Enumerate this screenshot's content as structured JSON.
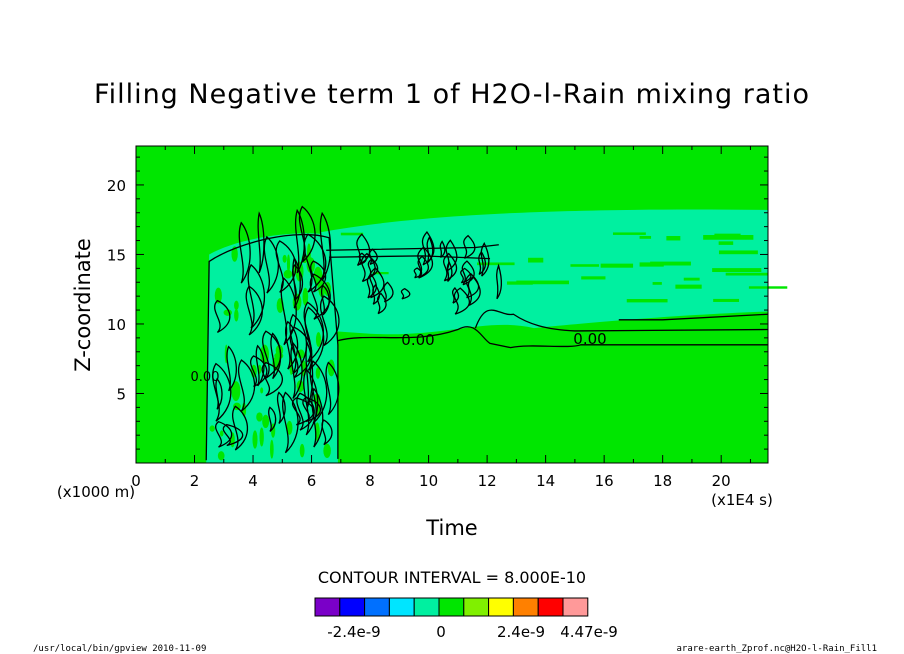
{
  "chart_data": {
    "type": "heatmap",
    "title": "Filling Negative term 1 of H2O-l-Rain mixing ratio",
    "xlabel": "Time",
    "ylabel": "Z-coordinate",
    "x_unit_label": "(x1E4 s)",
    "y_unit_label": "(x1000 m)",
    "xlim": [
      0,
      21.6
    ],
    "ylim": [
      0,
      22.8
    ],
    "x_ticks": [
      "0",
      "2",
      "4",
      "6",
      "8",
      "10",
      "12",
      "14",
      "16",
      "18",
      "20"
    ],
    "y_ticks": [
      "5",
      "10",
      "15",
      "20"
    ],
    "contour_interval_text": "CONTOUR INTERVAL = 8.000E-10",
    "contour_labels": [
      "0.00",
      "0.00",
      "0.00"
    ],
    "colorbar": {
      "colors": [
        "#7a00c8",
        "#0000ff",
        "#0070ff",
        "#00e5ff",
        "#00f0a0",
        "#00e600",
        "#80f000",
        "#ffff00",
        "#ff8000",
        "#ff0000",
        "#ff9999"
      ],
      "labels": [
        "-2.4e-9",
        "0",
        "2.4e-9",
        "4.47e-9"
      ]
    },
    "background_color": "#00e600",
    "feature_color": "#00f0a0",
    "grid": false
  },
  "footer": {
    "left": "/usr/local/bin/gpview  2010-11-09",
    "right": "arare-earth_Zprof.nc@H2O-l-Rain_Fill1"
  }
}
